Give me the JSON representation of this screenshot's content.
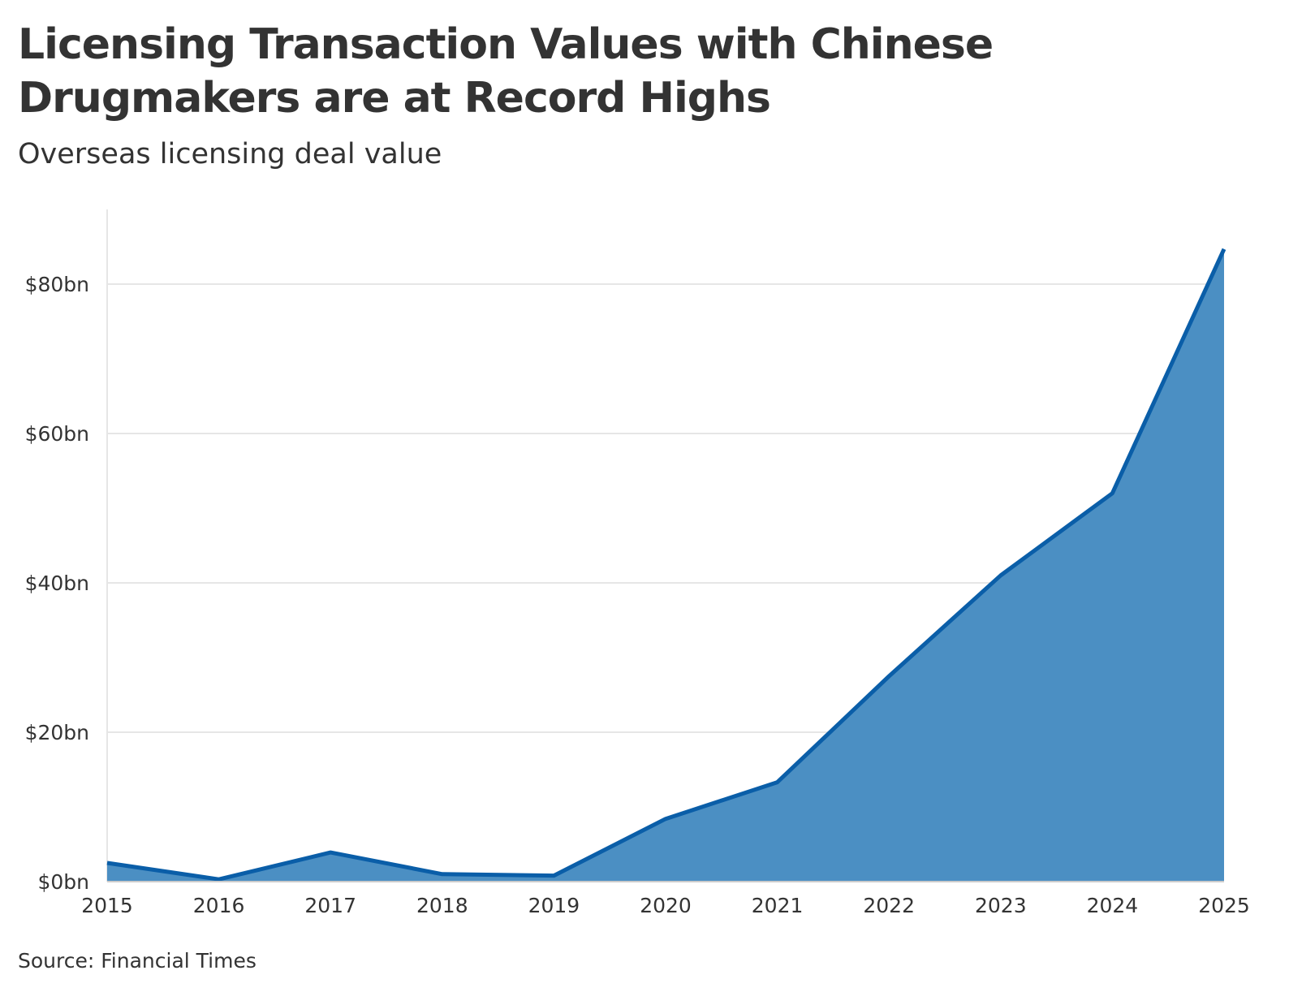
{
  "title": "Licensing Transaction Values with Chinese Drugmakers are at Record Highs",
  "subtitle": "Overseas licensing deal value",
  "source": "Source: Financial Times",
  "colors": {
    "area_fill": "#4b8fc3",
    "line": "#0a5ea8",
    "grid": "#e6e6e6",
    "axis": "#cccccc",
    "text": "#333333"
  },
  "chart_data": {
    "type": "area",
    "x": [
      2015,
      2016,
      2017,
      2018,
      2019,
      2020,
      2021,
      2022,
      2023,
      2024,
      2025
    ],
    "series": [
      {
        "values": [
          2.5,
          0.3,
          3.9,
          1.0,
          0.8,
          8.4,
          13.3,
          27.5,
          41.0,
          52.0,
          84.7
        ]
      }
    ],
    "y_ticks": [
      0,
      20,
      40,
      60,
      80
    ],
    "y_tick_labels": [
      "$0bn",
      "$20bn",
      "$40bn",
      "$60bn",
      "$80bn"
    ],
    "x_tick_labels": [
      "2015",
      "2016",
      "2017",
      "2018",
      "2019",
      "2020",
      "2021",
      "2022",
      "2023",
      "2024",
      "2025"
    ],
    "ylim": [
      0,
      90
    ],
    "xlim": [
      2015,
      2025
    ],
    "grid": true,
    "legend": false
  }
}
